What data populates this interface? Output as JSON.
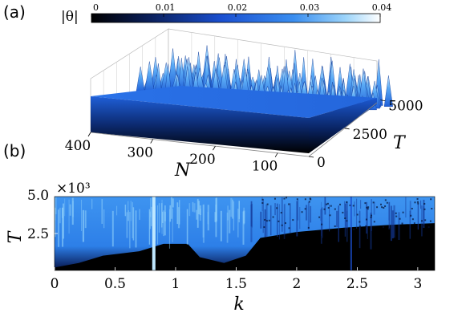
{
  "chart_data": [
    {
      "panel": "(a)",
      "type": "surface",
      "colorbar": {
        "label": "|θ|",
        "ticks": [
          "0",
          "0.01",
          "0.02",
          "0.03",
          "0.04"
        ],
        "range": [
          0,
          0.04
        ],
        "colormap": [
          "#000000",
          "#0a1f5a",
          "#1a4fd0",
          "#3a8ef0",
          "#9cd4fa",
          "#ffffff"
        ]
      },
      "x_axis": {
        "label": "N",
        "ticks": [
          "400",
          "300",
          "200",
          "100"
        ],
        "range": [
          400,
          50
        ]
      },
      "y_axis": {
        "label": "T",
        "ticks": [
          "0",
          "2500",
          "5000"
        ],
        "range": [
          0,
          5000
        ]
      },
      "base_level": 0.02,
      "peak_level": 0.04,
      "peak_onset_T": 2500,
      "grid": true
    },
    {
      "panel": "(b)",
      "type": "heatmap",
      "x_axis": {
        "label": "k",
        "ticks": [
          "0",
          "0.5",
          "1",
          "1.5",
          "2",
          "2.5",
          "3"
        ],
        "range": [
          0,
          3.14
        ]
      },
      "y_axis": {
        "label": "T",
        "ticks": [
          "2.5",
          "5.0"
        ],
        "range": [
          0,
          5.0
        ],
        "multiplier": "×10³"
      },
      "colormap": [
        "#000000",
        "#0a1f5a",
        "#1a4fd0",
        "#3a8ef0",
        "#9cd4fa",
        "#ffffff"
      ],
      "onset_profile": [
        {
          "k": 0.0,
          "T": 0.2
        },
        {
          "k": 0.2,
          "T": 0.5
        },
        {
          "k": 0.4,
          "T": 1.0
        },
        {
          "k": 0.7,
          "T": 1.3
        },
        {
          "k": 0.9,
          "T": 1.8
        },
        {
          "k": 1.1,
          "T": 1.8
        },
        {
          "k": 1.2,
          "T": 0.9
        },
        {
          "k": 1.4,
          "T": 0.5
        },
        {
          "k": 1.58,
          "T": 1.0
        },
        {
          "k": 1.7,
          "T": 2.2
        },
        {
          "k": 2.0,
          "T": 2.6
        },
        {
          "k": 2.4,
          "T": 2.9
        },
        {
          "k": 2.8,
          "T": 3.1
        },
        {
          "k": 3.14,
          "T": 3.2
        }
      ],
      "bright_lines_k": [
        0.82
      ],
      "dim_lines_k": [
        2.45
      ]
    }
  ]
}
